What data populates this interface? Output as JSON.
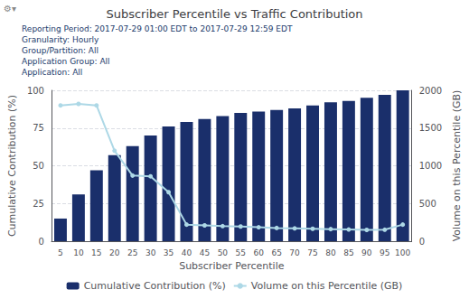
{
  "chart_data": {
    "type": "bar",
    "title": "Subscriber Percentile vs Traffic Contribution",
    "xlabel": "Subscriber Percentile",
    "ylabel": "Cumulative Contribution (%)",
    "y2label": "Volume on this Percentile (GB)",
    "annotations": [
      "Reporting Period: 2017-07-29 01:00 EDT to 2017-07-29 12:59 EDT\nGranularity: Hourly\nGroup/Partition: All\nApplication Group: All\nApplication: All",
      "⚙▾"
    ],
    "categories": [
      5,
      10,
      15,
      20,
      25,
      30,
      35,
      40,
      45,
      50,
      55,
      60,
      65,
      70,
      75,
      80,
      85,
      90,
      95,
      100
    ],
    "series": [
      {
        "name": "Cumulative Contribution (%)",
        "type": "bar",
        "color": "#1a2f6b",
        "values": [
          15,
          31,
          47,
          57,
          63,
          70,
          76,
          79,
          81,
          83,
          85,
          86,
          87,
          88,
          90,
          92,
          93,
          95,
          97,
          100
        ]
      },
      {
        "name": "Volume on this Percentile (GB)",
        "type": "line",
        "axis": "y2",
        "color": "#add8e6",
        "marker": "circle",
        "values": [
          1800,
          1820,
          1800,
          1200,
          870,
          860,
          650,
          220,
          210,
          200,
          195,
          185,
          175,
          170,
          165,
          160,
          155,
          150,
          152,
          220
        ]
      }
    ],
    "ylim": [
      0,
      100
    ],
    "yticks": [
      0,
      25,
      50,
      75,
      100
    ],
    "y2lim": [
      0,
      2000
    ],
    "y2ticks": [
      0,
      500,
      1000,
      1500,
      2000
    ],
    "grid": true,
    "legend": "bottom"
  }
}
